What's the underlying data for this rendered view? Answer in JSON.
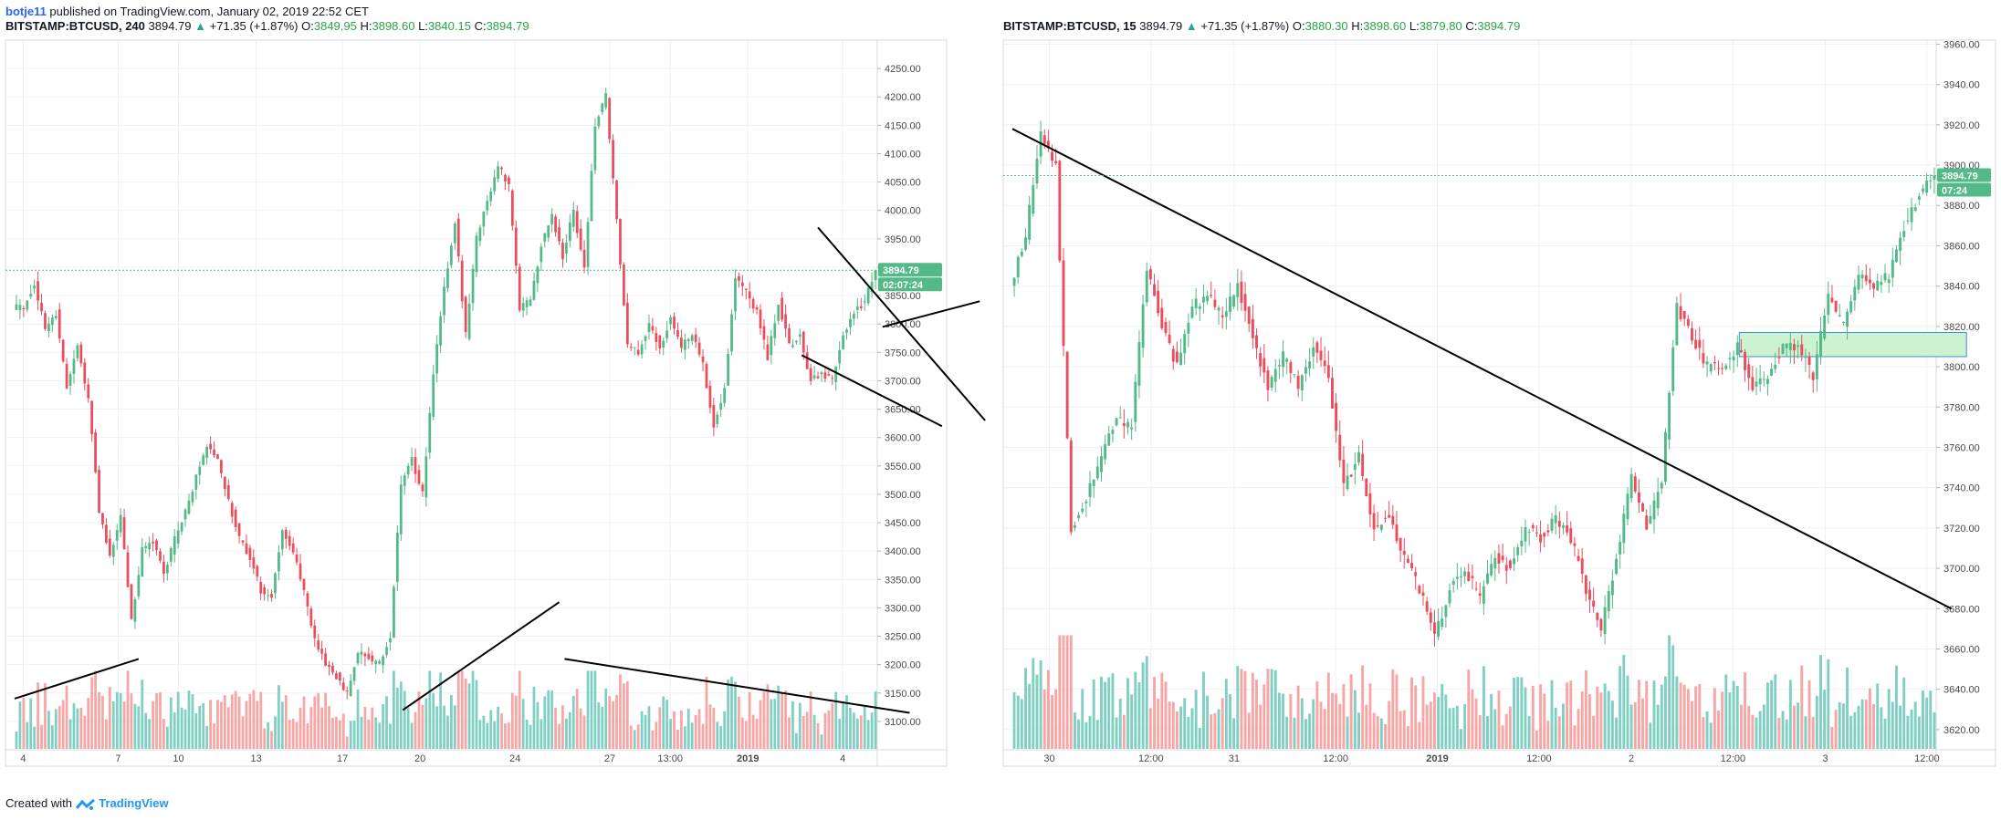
{
  "header": {
    "author": "botje11",
    "published_text": " published on TradingView.com, January 02, 2019 22:52 CET"
  },
  "left_legend": {
    "symbol": "BITSTAMP:BTCUSD, 240",
    "last": "3894.79",
    "change_arrow": "▲",
    "change": "+71.35 (+1.87%)",
    "o_label": "O:",
    "o_val": "3849.95",
    "h_label": "H:",
    "h_val": "3898.60",
    "l_label": "L:",
    "l_val": "3840.15",
    "c_label": "C:",
    "c_val": "3894.79"
  },
  "right_legend": {
    "symbol": "BITSTAMP:BTCUSD, 15",
    "last": "3894.79",
    "change_arrow": "▲",
    "change": "+71.35 (+1.87%)",
    "o_label": "O:",
    "o_val": "3880.30",
    "h_label": "H:",
    "h_val": "3898.60",
    "l_label": "L:",
    "l_val": "3879.80",
    "c_label": "C:",
    "c_val": "3894.79"
  },
  "footer": {
    "created_with": "Created with",
    "brand": "TradingView"
  },
  "colors": {
    "up": "#53b987",
    "down": "#eb4d5c",
    "vol_up": "#7fcfc2",
    "vol_down": "#f7a5a5",
    "grid": "#eef0f4",
    "axis_text": "#4a4a4a",
    "price_badge": "#53b987",
    "trendline": "#000000",
    "zone_fill": "#ccf2cf",
    "zone_border": "#3a8fd6"
  },
  "chart_data": [
    {
      "type": "candlestick",
      "symbol": "BITSTAMP:BTCUSD",
      "interval": "240",
      "ylim": [
        3050,
        4300
      ],
      "y_ticks": [
        3100,
        3150,
        3200,
        3250,
        3300,
        3350,
        3400,
        3450,
        3500,
        3550,
        3600,
        3650,
        3700,
        3750,
        3800,
        3850,
        3900,
        3950,
        4000,
        4050,
        4100,
        4150,
        4200,
        4250
      ],
      "x_ticks": [
        "4",
        "7",
        "10",
        "13",
        "17",
        "20",
        "24",
        "27",
        "13:00",
        "2019",
        "4"
      ],
      "last_price": 3894.79,
      "countdown": "02:07:24",
      "anchors": [
        3830,
        3830,
        3870,
        3790,
        3820,
        3690,
        3760,
        3670,
        3470,
        3390,
        3460,
        3280,
        3400,
        3420,
        3360,
        3420,
        3470,
        3530,
        3590,
        3560,
        3490,
        3420,
        3390,
        3330,
        3320,
        3440,
        3400,
        3330,
        3240,
        3200,
        3180,
        3150,
        3220,
        3210,
        3200,
        3250,
        3520,
        3560,
        3500,
        3710,
        3860,
        3980,
        3780,
        3950,
        4020,
        4080,
        4040,
        3830,
        3840,
        3940,
        3990,
        3920,
        4000,
        3900,
        4150,
        4200,
        3980,
        3760,
        3750,
        3800,
        3760,
        3810,
        3760,
        3780,
        3730,
        3620,
        3690,
        3880,
        3860,
        3820,
        3740,
        3840,
        3760,
        3780,
        3700,
        3710,
        3700,
        3780,
        3820,
        3840,
        3894.79
      ],
      "trendlines": [
        {
          "p1": [
            0,
            3140
          ],
          "p2": [
            11.5,
            3210
          ]
        },
        {
          "p1": [
            36,
            3120
          ],
          "p2": [
            50.5,
            3310
          ]
        },
        {
          "p1": [
            51,
            3210
          ],
          "p2": [
            83,
            3115
          ]
        },
        {
          "p1": [
            73,
            3745
          ],
          "p2": [
            86,
            3620
          ]
        },
        {
          "p1": [
            74.5,
            3970
          ],
          "p2": [
            90,
            3630
          ]
        },
        {
          "p1": [
            80.5,
            3795
          ],
          "p2": [
            89.5,
            3840
          ]
        }
      ]
    },
    {
      "type": "candlestick",
      "symbol": "BITSTAMP:BTCUSD",
      "interval": "15",
      "ylim": [
        3610,
        3962
      ],
      "y_ticks": [
        3620,
        3640,
        3660,
        3680,
        3700,
        3720,
        3740,
        3760,
        3780,
        3800,
        3820,
        3840,
        3860,
        3880,
        3900,
        3920,
        3940,
        3960
      ],
      "x_ticks": [
        "30",
        "12:00",
        "31",
        "12:00",
        "2019",
        "12:00",
        "2",
        "12:00",
        "3",
        "12:00"
      ],
      "last_price": 3894.79,
      "countdown": "07:24",
      "anchors": [
        3840,
        3865,
        3915,
        3900,
        3720,
        3735,
        3755,
        3775,
        3770,
        3850,
        3820,
        3800,
        3830,
        3835,
        3825,
        3840,
        3815,
        3790,
        3805,
        3790,
        3810,
        3795,
        3740,
        3755,
        3720,
        3725,
        3705,
        3690,
        3665,
        3690,
        3700,
        3685,
        3705,
        3700,
        3720,
        3715,
        3725,
        3715,
        3690,
        3670,
        3705,
        3745,
        3720,
        3745,
        3830,
        3815,
        3800,
        3800,
        3810,
        3790,
        3795,
        3810,
        3810,
        3795,
        3835,
        3820,
        3845,
        3840,
        3845,
        3870,
        3885,
        3894.79
      ],
      "trendlines": [
        {
          "p1": [
            0,
            3918
          ],
          "p2": [
            62,
            3680
          ]
        }
      ],
      "zone": {
        "x_from": 48,
        "x_to": 63,
        "y_from": 3805,
        "y_to": 3817
      }
    }
  ]
}
